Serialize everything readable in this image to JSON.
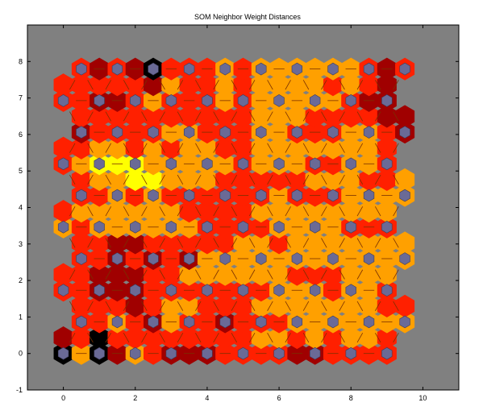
{
  "chart_data": {
    "type": "heatmap",
    "title": "SOM Neighbor Weight Distances",
    "xlabel": "",
    "ylabel": "",
    "xlim": [
      -1,
      11
    ],
    "ylim": [
      -1,
      9
    ],
    "xticks": [
      0,
      2,
      4,
      6,
      8,
      10
    ],
    "yticks": [
      -1,
      0,
      1,
      2,
      3,
      4,
      5,
      6,
      7,
      8
    ],
    "grid": false,
    "legend": "none",
    "grid_size": {
      "cols": 10,
      "rows": 10
    },
    "row_spacing": 0.866,
    "colormap": [
      "#ffff00",
      "#ffa000",
      "#ff2000",
      "#a00000",
      "#000000"
    ],
    "background_color": "#808080",
    "neuron_color": "#6a6a96",
    "line_color": "#7a3000",
    "distance_levels": [
      [
        4,
        1,
        4,
        3,
        1,
        2,
        3,
        3,
        3,
        2,
        2,
        2,
        2,
        3,
        3,
        2,
        2,
        2,
        2
      ],
      [
        3,
        2,
        4,
        2,
        2,
        2,
        2,
        2,
        2,
        2,
        2,
        1,
        1,
        2,
        1,
        2,
        1,
        1,
        2
      ],
      [
        2,
        2,
        1,
        2,
        3,
        1,
        2,
        2,
        3,
        2,
        2,
        2,
        1,
        1,
        1,
        1,
        1,
        1,
        1
      ],
      [
        2,
        2,
        2,
        3,
        2,
        1,
        1,
        2,
        2,
        2,
        1,
        1,
        1,
        1,
        1,
        1,
        1,
        2,
        2
      ],
      [
        2,
        2,
        3,
        3,
        3,
        2,
        2,
        2,
        2,
        2,
        2,
        2,
        1,
        1,
        1,
        2,
        1,
        1,
        2
      ],
      [
        2,
        2,
        3,
        3,
        3,
        2,
        2,
        1,
        1,
        1,
        1,
        1,
        1,
        2,
        2,
        2,
        1,
        1,
        1
      ],
      [
        2,
        2,
        3,
        2,
        3,
        2,
        3,
        1,
        1,
        1,
        1,
        1,
        1,
        1,
        1,
        1,
        1,
        1,
        1
      ],
      [
        2,
        2,
        3,
        3,
        2,
        2,
        2,
        2,
        2,
        1,
        1,
        2,
        1,
        1,
        1,
        1,
        1,
        1,
        1
      ],
      [
        1,
        2,
        1,
        1,
        1,
        1,
        1,
        1,
        2,
        2,
        2,
        2,
        1,
        1,
        1,
        1,
        2,
        2,
        2
      ],
      [
        2,
        1,
        1,
        1,
        1,
        1,
        1,
        2,
        2,
        2,
        2,
        1,
        1,
        1,
        1,
        1,
        1,
        1,
        1
      ],
      [
        2,
        2,
        1,
        2,
        1,
        2,
        2,
        2,
        2,
        2,
        2,
        1,
        2,
        2,
        2,
        1,
        1,
        1,
        1
      ],
      [
        2,
        1,
        1,
        0,
        0,
        1,
        1,
        1,
        2,
        2,
        2,
        2,
        2,
        1,
        1,
        1,
        2,
        2,
        1
      ],
      [
        2,
        1,
        0,
        0,
        0,
        1,
        1,
        1,
        1,
        1,
        2,
        1,
        1,
        1,
        2,
        2,
        1,
        1,
        2
      ],
      [
        2,
        2,
        1,
        1,
        2,
        1,
        2,
        1,
        1,
        2,
        2,
        1,
        1,
        1,
        1,
        1,
        1,
        1,
        2
      ],
      [
        3,
        2,
        2,
        2,
        2,
        1,
        1,
        2,
        2,
        2,
        1,
        1,
        2,
        2,
        2,
        1,
        1,
        2,
        3
      ],
      [
        2,
        2,
        2,
        2,
        2,
        2,
        2,
        2,
        2,
        2,
        1,
        1,
        1,
        2,
        2,
        2,
        2,
        3,
        3
      ],
      [
        2,
        2,
        3,
        3,
        2,
        1,
        2,
        2,
        2,
        1,
        2,
        1,
        1,
        1,
        1,
        1,
        2,
        3,
        3
      ],
      [
        2,
        2,
        2,
        2,
        2,
        3,
        1,
        2,
        2,
        1,
        2,
        1,
        1,
        1,
        1,
        2,
        1,
        2,
        3
      ],
      [
        2,
        3,
        2,
        3,
        4,
        2,
        2,
        2,
        1,
        2,
        1,
        1,
        1,
        1,
        1,
        1,
        2,
        3,
        2
      ]
    ]
  }
}
